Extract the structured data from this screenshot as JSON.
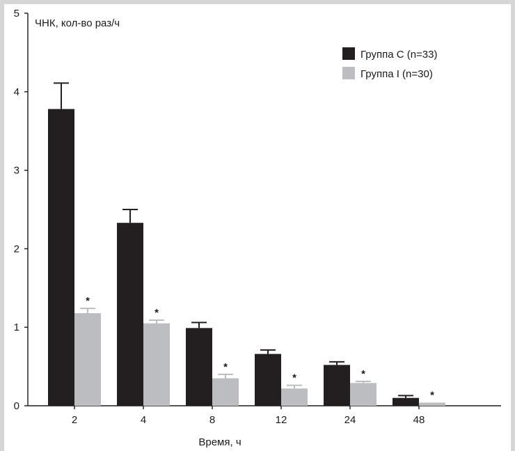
{
  "chart_data": {
    "type": "bar",
    "ylabel": "ЧНК, кол-во раз/ч",
    "xlabel": "Время, ч",
    "categories": [
      "2",
      "4",
      "8",
      "12",
      "24",
      "48"
    ],
    "ylim": [
      0,
      5
    ],
    "yticks": [
      "0",
      "1",
      "2",
      "3",
      "4",
      "5"
    ],
    "series": [
      {
        "name": "Группа С (n=33)",
        "color": "#231f20",
        "values": [
          3.78,
          2.33,
          0.99,
          0.66,
          0.52,
          0.1
        ],
        "errors": [
          0.33,
          0.17,
          0.07,
          0.05,
          0.04,
          0.03
        ]
      },
      {
        "name": "Группа I (n=30)",
        "color": "#bcbdc0",
        "values": [
          1.18,
          1.05,
          0.35,
          0.22,
          0.29,
          0.04
        ],
        "errors": [
          0.06,
          0.04,
          0.05,
          0.04,
          0.02,
          0.0
        ]
      }
    ],
    "significance_marker": "*",
    "significance_series": 1,
    "legend_position": "top-right",
    "grid": false
  }
}
